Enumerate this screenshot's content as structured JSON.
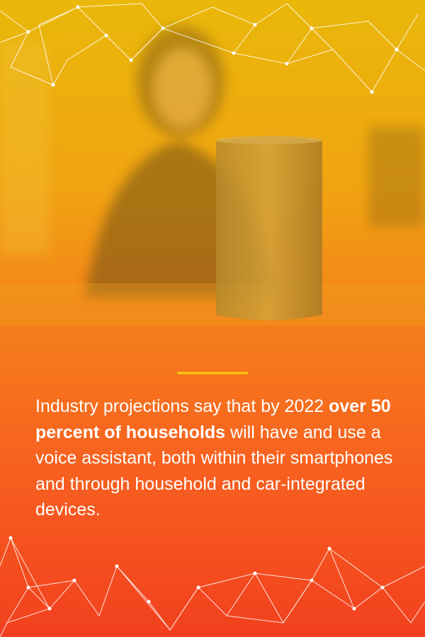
{
  "body": {
    "before": "Industry projections say that by 2022 ",
    "highlight": "over 50 percent of households",
    "after": " will have and use a voice assistant, both within their smartphones and through household and car-integrated devices."
  }
}
